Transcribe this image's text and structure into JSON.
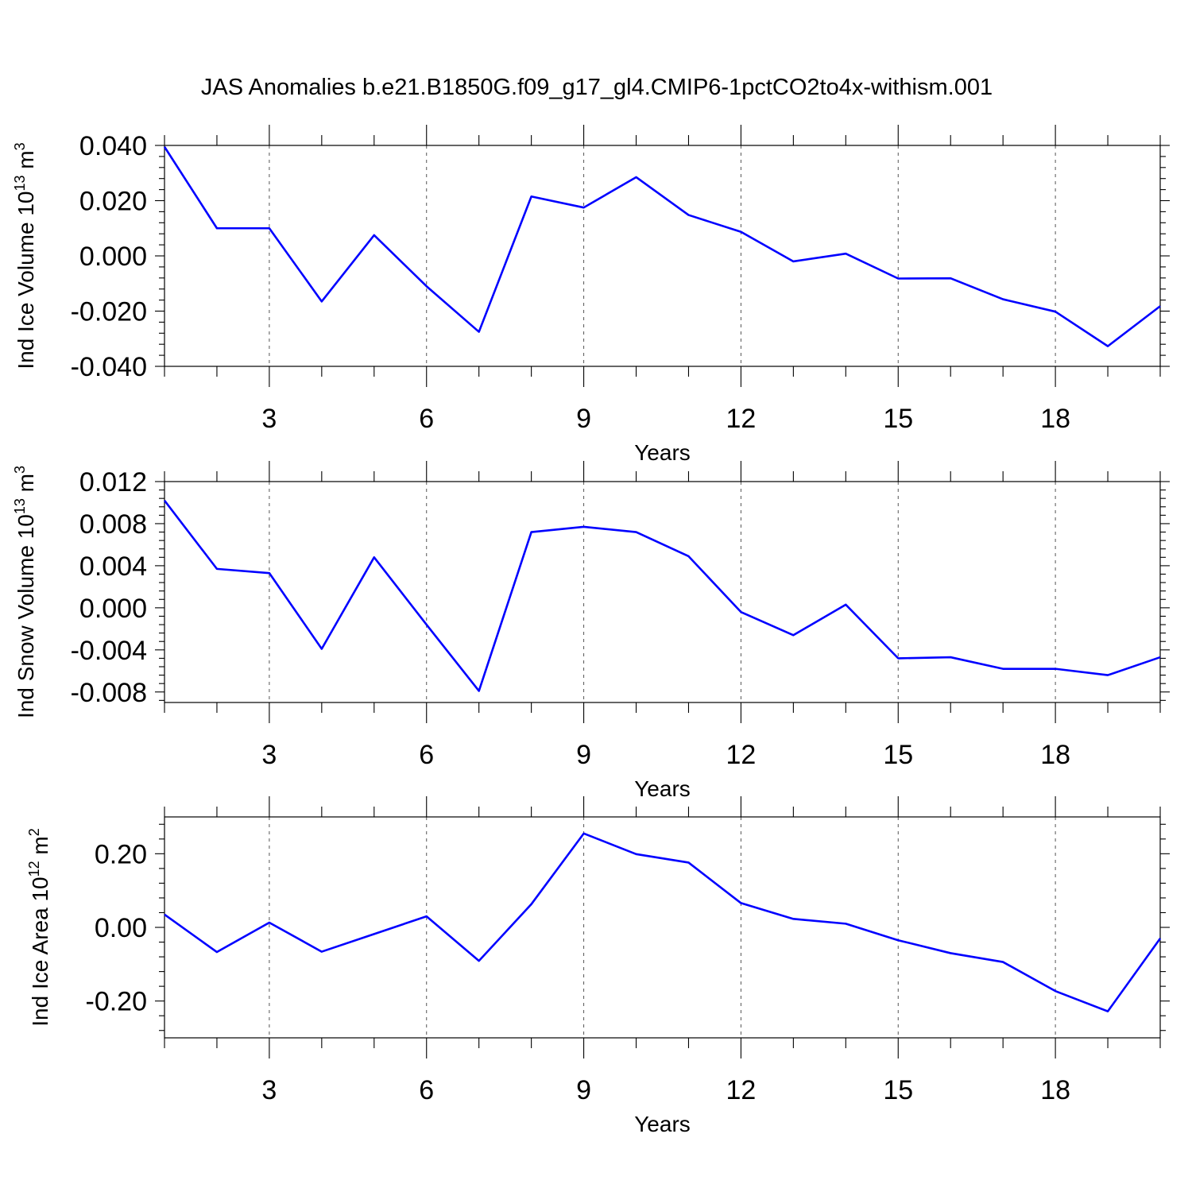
{
  "title": "JAS Anomalies b.e21.B1850G.f09_g17_gl4.CMIP6-1pctCO2to4x-withism.001",
  "colors": {
    "series": "#0000ff",
    "axes": "#000000",
    "grid": "#555555"
  },
  "chart_data": [
    {
      "type": "line",
      "ylabel": "Ind Ice Volume",
      "yunit_base": "10",
      "yunit_exp": "13",
      "yunit_sym": "m",
      "yunit_sym_exp": "3",
      "xlabel": "Years",
      "xlim": [
        1,
        20
      ],
      "ylim": [
        -0.04,
        0.04
      ],
      "xticks": [
        3,
        6,
        9,
        12,
        15,
        18
      ],
      "xtick_labels": [
        "3",
        "6",
        "9",
        "12",
        "15",
        "18"
      ],
      "yticks": [
        -0.04,
        -0.02,
        0,
        0.02,
        0.04
      ],
      "ytick_labels": [
        "-0.040",
        "-0.020",
        "0.000",
        "0.020",
        "0.040"
      ],
      "x": [
        1,
        2,
        3,
        4,
        5,
        6,
        7,
        8,
        9,
        10,
        11,
        12,
        13,
        14,
        15,
        16,
        17,
        18,
        19,
        20
      ],
      "series": [
        {
          "name": "Ind Ice Volume",
          "values": [
            0.0395,
            0.01,
            0.01,
            -0.0165,
            0.0075,
            -0.011,
            -0.0275,
            0.0215,
            0.0175,
            0.0285,
            0.0148,
            0.0087,
            -0.002,
            0.0008,
            -0.0082,
            -0.0081,
            -0.0157,
            -0.0202,
            -0.0327,
            -0.0182
          ]
        }
      ]
    },
    {
      "type": "line",
      "ylabel": "Ind Snow Volume",
      "yunit_base": "10",
      "yunit_exp": "13",
      "yunit_sym": "m",
      "yunit_sym_exp": "3",
      "xlabel": "Years",
      "xlim": [
        1,
        20
      ],
      "ylim": [
        -0.009,
        0.012
      ],
      "xticks": [
        3,
        6,
        9,
        12,
        15,
        18
      ],
      "xtick_labels": [
        "3",
        "6",
        "9",
        "12",
        "15",
        "18"
      ],
      "yticks": [
        -0.008,
        -0.004,
        0,
        0.004,
        0.008,
        0.012
      ],
      "ytick_labels": [
        "-0.008",
        "-0.004",
        "0.000",
        "0.004",
        "0.008",
        "0.012"
      ],
      "x": [
        1,
        2,
        3,
        4,
        5,
        6,
        7,
        8,
        9,
        10,
        11,
        12,
        13,
        14,
        15,
        16,
        17,
        18,
        19,
        20
      ],
      "series": [
        {
          "name": "Ind Snow Volume",
          "values": [
            0.0102,
            0.0037,
            0.0033,
            -0.0039,
            0.0048,
            -0.0016,
            -0.0079,
            0.0072,
            0.0077,
            0.0072,
            0.0049,
            -0.0004,
            -0.0026,
            0.0003,
            -0.0048,
            -0.0047,
            -0.0058,
            -0.0058,
            -0.0064,
            -0.0047
          ]
        }
      ]
    },
    {
      "type": "line",
      "ylabel": "Ind Ice Area",
      "yunit_base": "10",
      "yunit_exp": "12",
      "yunit_sym": "m",
      "yunit_sym_exp": "2",
      "xlabel": "Years",
      "xlim": [
        1,
        20
      ],
      "ylim": [
        -0.3,
        0.3
      ],
      "xticks": [
        3,
        6,
        9,
        12,
        15,
        18
      ],
      "xtick_labels": [
        "3",
        "6",
        "9",
        "12",
        "15",
        "18"
      ],
      "yticks": [
        -0.2,
        0,
        0.2
      ],
      "ytick_labels": [
        "-0.20",
        "0.00",
        "0.20"
      ],
      "x": [
        1,
        2,
        3,
        4,
        5,
        6,
        7,
        8,
        9,
        10,
        11,
        12,
        13,
        14,
        15,
        16,
        17,
        18,
        19,
        20
      ],
      "series": [
        {
          "name": "Ind Ice Area",
          "values": [
            0.035,
            -0.067,
            0.013,
            -0.066,
            -0.018,
            0.03,
            -0.091,
            0.063,
            0.255,
            0.199,
            0.176,
            0.066,
            0.023,
            0.01,
            -0.035,
            -0.07,
            -0.094,
            -0.173,
            -0.228,
            -0.03
          ]
        }
      ]
    }
  ]
}
